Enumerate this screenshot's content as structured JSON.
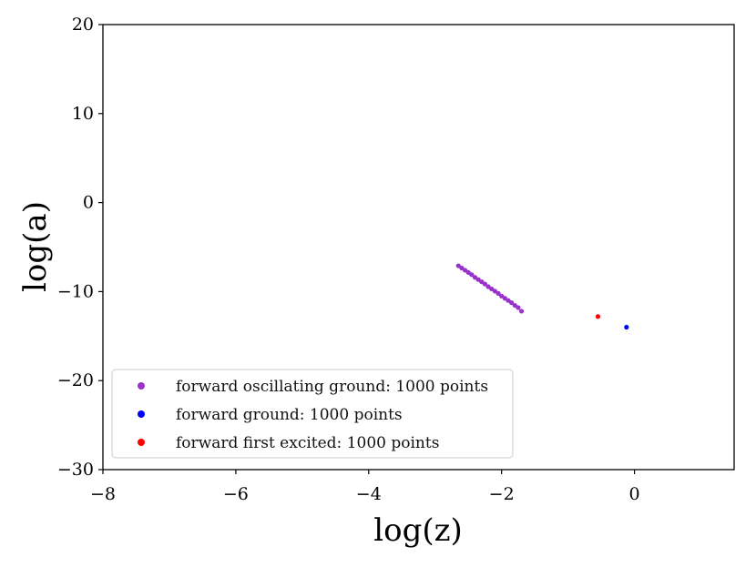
{
  "chart_data": {
    "type": "scatter",
    "title": "",
    "xlabel": "log(z)",
    "ylabel": "log(a)",
    "xlim": [
      -8,
      1.5
    ],
    "ylim": [
      -30,
      20
    ],
    "x_ticks": [
      -8,
      -6,
      -4,
      -2,
      0
    ],
    "x_tick_labels": [
      "−8",
      "−6",
      "−4",
      "−2",
      "0"
    ],
    "y_ticks": [
      -30,
      -20,
      -10,
      0,
      10,
      20
    ],
    "y_tick_labels": [
      "−30",
      "−20",
      "−10",
      "0",
      "10",
      "20"
    ],
    "grid": false,
    "legend_position": "lower-left",
    "series": [
      {
        "name": "forward oscillating ground: 1000 points",
        "color": "#9932CC",
        "x": [
          -2.65,
          -2.6,
          -2.55,
          -2.5,
          -2.45,
          -2.4,
          -2.35,
          -2.3,
          -2.25,
          -2.2,
          -2.15,
          -2.1,
          -2.05,
          -2.0,
          -1.95,
          -1.9,
          -1.85,
          -1.8,
          -1.75,
          -1.7
        ],
        "y": [
          -7.1,
          -7.35,
          -7.6,
          -7.85,
          -8.1,
          -8.4,
          -8.65,
          -8.9,
          -9.15,
          -9.45,
          -9.7,
          -9.95,
          -10.2,
          -10.5,
          -10.75,
          -11.0,
          -11.25,
          -11.55,
          -11.8,
          -12.2
        ]
      },
      {
        "name": "forward ground: 1000 points",
        "color": "#0000FF",
        "x": [
          -0.12
        ],
        "y": [
          -14.0
        ]
      },
      {
        "name": "forward first excited: 1000 points",
        "color": "#FF0000",
        "x": [
          -0.55
        ],
        "y": [
          -12.8
        ]
      }
    ]
  }
}
